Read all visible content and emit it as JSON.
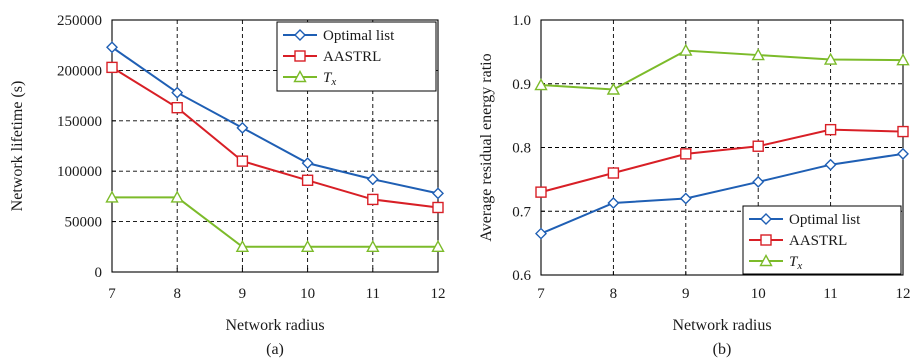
{
  "colors": {
    "optimal": "#1f5fb4",
    "aastrl": "#d81f26",
    "tx": "#7cbb2a"
  },
  "chart_data": [
    {
      "type": "line",
      "panel_label": "(a)",
      "xlabel": "Network radius",
      "ylabel": "Network lifetime (s)",
      "x": [
        7,
        8,
        9,
        10,
        11,
        12
      ],
      "xlim": [
        7,
        12
      ],
      "ylim": [
        0,
        250000
      ],
      "xticks": [
        "7",
        "8",
        "9",
        "10",
        "11",
        "12"
      ],
      "yticks": [
        {
          "value": 0,
          "label": "0"
        },
        {
          "value": 50000,
          "label": "50000"
        },
        {
          "value": 100000,
          "label": "100000"
        },
        {
          "value": 150000,
          "label": "150000"
        },
        {
          "value": 200000,
          "label": "200000"
        },
        {
          "value": 250000,
          "label": "250000"
        }
      ],
      "grid": true,
      "legend_position": "top-right",
      "series": [
        {
          "name": "Optimal list",
          "key": "optimal",
          "marker": "diamond",
          "values": [
            223000,
            178000,
            143000,
            108000,
            92000,
            78000
          ]
        },
        {
          "name": "AASTRL",
          "key": "aastrl",
          "marker": "square",
          "values": [
            203000,
            163000,
            110000,
            91000,
            72000,
            64000
          ]
        },
        {
          "name": "Tx",
          "name_main": "T",
          "name_sub": "x",
          "key": "tx",
          "marker": "triangle",
          "values": [
            74000,
            74000,
            25000,
            25000,
            25000,
            25000
          ]
        }
      ]
    },
    {
      "type": "line",
      "panel_label": "(b)",
      "xlabel": "Network radius",
      "ylabel": "Average residual energy ratio",
      "x": [
        7,
        8,
        9,
        10,
        11,
        12
      ],
      "xlim": [
        7,
        12
      ],
      "ylim": [
        0.6,
        1.0
      ],
      "xticks": [
        "7",
        "8",
        "9",
        "10",
        "11",
        "12"
      ],
      "yticks": [
        {
          "value": 0.6,
          "label": "0.6"
        },
        {
          "value": 0.7,
          "label": "0.7"
        },
        {
          "value": 0.8,
          "label": "0.8"
        },
        {
          "value": 0.9,
          "label": "0.9"
        },
        {
          "value": 1.0,
          "label": "1.0"
        }
      ],
      "grid": true,
      "legend_position": "bottom-right",
      "series": [
        {
          "name": "Optimal list",
          "key": "optimal",
          "marker": "diamond",
          "values": [
            0.665,
            0.713,
            0.72,
            0.746,
            0.773,
            0.79
          ]
        },
        {
          "name": "AASTRL",
          "key": "aastrl",
          "marker": "square",
          "values": [
            0.73,
            0.76,
            0.79,
            0.802,
            0.828,
            0.825
          ]
        },
        {
          "name": "Tx",
          "name_main": "T",
          "name_sub": "x",
          "key": "tx",
          "marker": "triangle",
          "values": [
            0.898,
            0.891,
            0.952,
            0.945,
            0.938,
            0.937
          ]
        }
      ]
    }
  ]
}
